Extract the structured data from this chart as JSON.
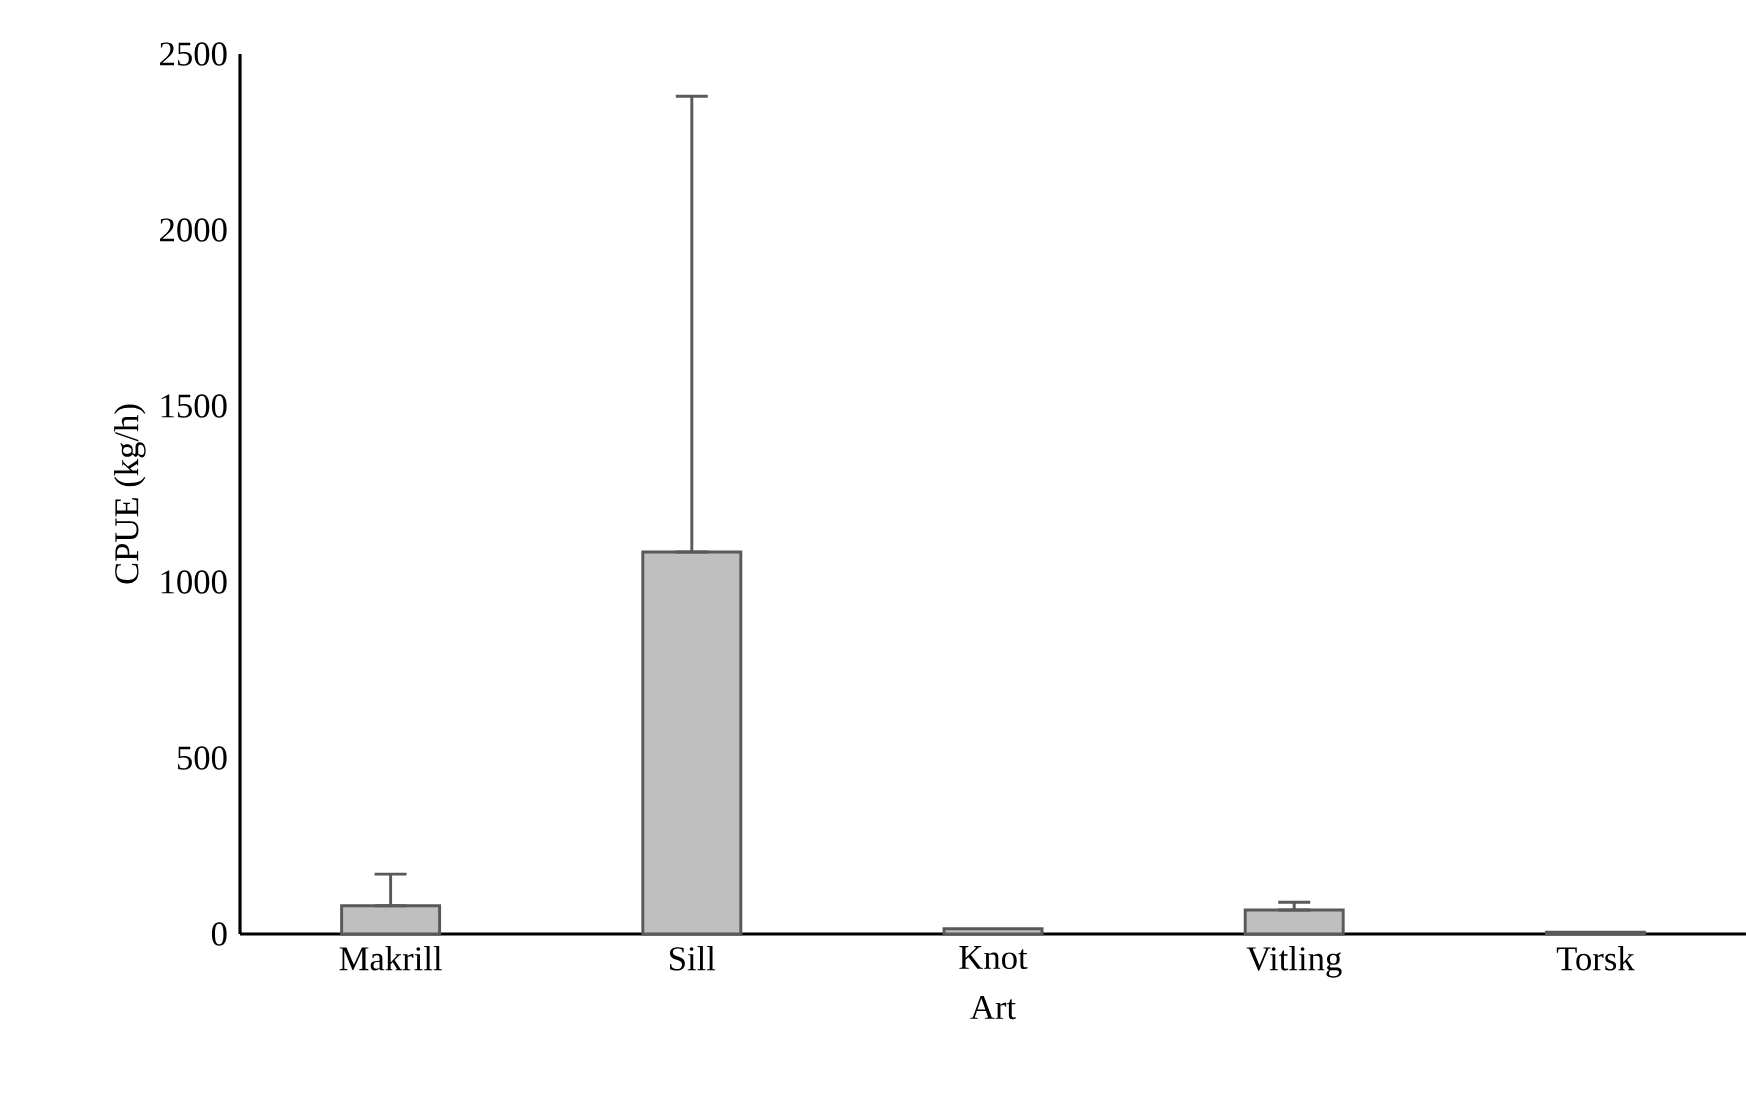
{
  "chart_data": {
    "type": "bar",
    "xlabel": "Art",
    "ylabel": "CPUE (kg/h)",
    "categories": [
      "Makrill",
      "Sill",
      "Knot",
      "Vitling",
      "Torsk"
    ],
    "values": [
      80,
      1085,
      15,
      68,
      5
    ],
    "errors": [
      [
        80,
        170
      ],
      [
        1085,
        2380
      ],
      null,
      [
        68,
        90
      ],
      null
    ],
    "color": "#bfbfbf",
    "ylim": [
      0,
      2500
    ],
    "yticks": [
      0,
      500,
      1000,
      1500,
      2000,
      2500
    ]
  }
}
